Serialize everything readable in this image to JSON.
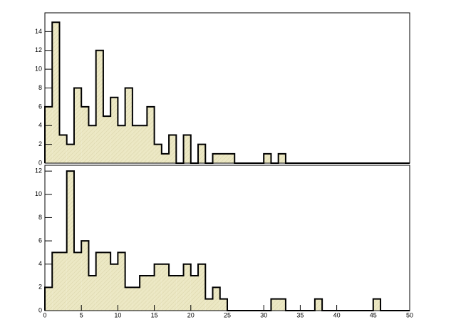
{
  "chart_data": [
    {
      "type": "histogram",
      "bins": [
        0,
        1,
        2,
        3,
        4,
        5,
        6,
        7,
        8,
        9,
        10,
        11,
        12,
        13,
        14,
        15,
        16,
        17,
        18,
        19,
        20,
        21,
        22,
        23,
        24,
        25,
        26,
        27,
        28,
        29,
        30,
        31,
        32,
        33,
        34,
        35,
        36,
        37,
        38,
        39,
        40,
        41,
        42,
        43,
        44,
        45,
        46,
        47,
        48,
        49,
        50
      ],
      "values": [
        6,
        15,
        3,
        2,
        8,
        6,
        4,
        12,
        5,
        7,
        4,
        8,
        4,
        4,
        6,
        2,
        1,
        3,
        0,
        3,
        0,
        2,
        0,
        1,
        1,
        1,
        0,
        0,
        0,
        0,
        1,
        0,
        1,
        0,
        0,
        0,
        0,
        0,
        0,
        0,
        0,
        0,
        0,
        0,
        0,
        0,
        0,
        0,
        0,
        0
      ],
      "color": "#ece8c4",
      "xlim": [
        0,
        50
      ],
      "ylim": [
        0,
        16
      ],
      "yticks": [
        0,
        2,
        4,
        6,
        8,
        10,
        12,
        14
      ]
    },
    {
      "type": "histogram",
      "bins": [
        0,
        1,
        2,
        3,
        4,
        5,
        6,
        7,
        8,
        9,
        10,
        11,
        12,
        13,
        14,
        15,
        16,
        17,
        18,
        19,
        20,
        21,
        22,
        23,
        24,
        25,
        26,
        27,
        28,
        29,
        30,
        31,
        32,
        33,
        34,
        35,
        36,
        37,
        38,
        39,
        40,
        41,
        42,
        43,
        44,
        45,
        46,
        47,
        48,
        49,
        50
      ],
      "values": [
        2,
        5,
        5,
        12,
        5,
        6,
        3,
        5,
        5,
        4,
        5,
        2,
        2,
        3,
        3,
        4,
        4,
        3,
        3,
        4,
        3,
        4,
        1,
        2,
        1,
        0,
        0,
        0,
        0,
        0,
        0,
        1,
        1,
        0,
        0,
        0,
        0,
        1,
        0,
        0,
        0,
        0,
        0,
        0,
        0,
        1,
        0,
        0,
        0,
        0
      ],
      "color": "#ece8c4",
      "xlim": [
        0,
        50
      ],
      "ylim": [
        0,
        12.5
      ],
      "xticks": [
        0,
        5,
        10,
        15,
        20,
        25,
        30,
        35,
        40,
        45,
        50
      ],
      "yticks": [
        0,
        2,
        4,
        6,
        8,
        10,
        12
      ]
    }
  ]
}
